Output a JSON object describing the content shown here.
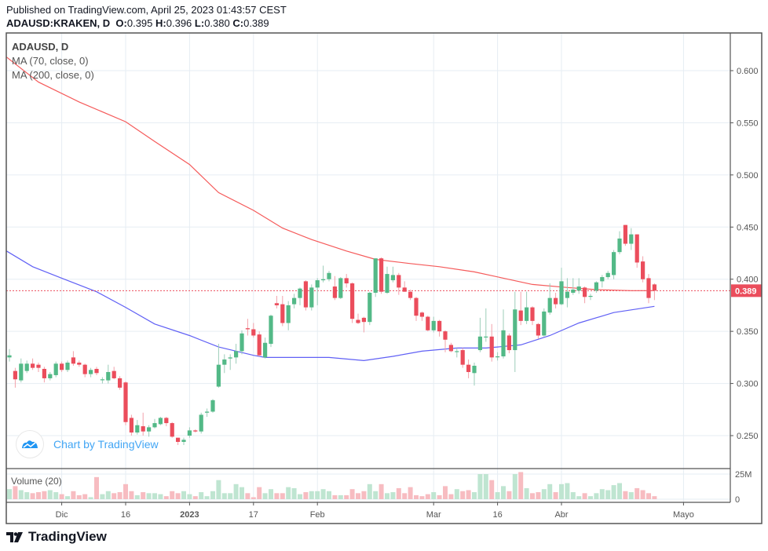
{
  "header": {
    "published": "Published on TradingView.com, April 25, 2023 01:43:57 CEST",
    "symbol": "ADAUSD:KRAKEN, D",
    "o_label": "O:",
    "o": "0.395",
    "h_label": "H:",
    "h": "0.396",
    "l_label": "L:",
    "l": "0.380",
    "c_label": "C:",
    "c": "0.389"
  },
  "legend": {
    "title": "ADAUSD, D",
    "ma70": "MA (70, close, 0)",
    "ma200": "MA (200, close, 0)",
    "volume": "Volume (20)"
  },
  "watermark": "Chart by TradingView",
  "footer_logo": "TradingView",
  "colors": {
    "up": "#53b987",
    "down": "#eb4d5c",
    "vol_up": "#bfe5d1",
    "vol_down": "#f7bcc1",
    "ma70": "#f55a5a",
    "ma200": "#6060f5",
    "last_price": "#eb4d5c",
    "grid": "#e6edf3"
  },
  "chart_data": {
    "type": "candlestick",
    "symbol": "ADAUSD",
    "interval": "D",
    "ylim": [
      0.22,
      0.635
    ],
    "y_ticks": [
      "0.600",
      "0.550",
      "0.500",
      "0.450",
      "0.400",
      "0.350",
      "0.300",
      "0.250"
    ],
    "last_price": "0.389",
    "x_ticks": [
      {
        "label": "Dic",
        "index": 9
      },
      {
        "label": "16",
        "index": 20
      },
      {
        "label": "2023",
        "index": 31,
        "bold": true
      },
      {
        "label": "17",
        "index": 42
      },
      {
        "label": "Feb",
        "index": 53
      },
      {
        "label": "Mar",
        "index": 73
      },
      {
        "label": "16",
        "index": 84
      },
      {
        "label": "Abr",
        "index": 95
      },
      {
        "label": "Mayo",
        "index": 116
      }
    ],
    "x_range": [
      -0.5,
      124
    ],
    "ohlc": [
      [
        0.325,
        0.333,
        0.321,
        0.327
      ],
      [
        0.312,
        0.315,
        0.296,
        0.304
      ],
      [
        0.303,
        0.324,
        0.301,
        0.319
      ],
      [
        0.312,
        0.322,
        0.31,
        0.319
      ],
      [
        0.319,
        0.324,
        0.313,
        0.315
      ],
      [
        0.318,
        0.32,
        0.311,
        0.315
      ],
      [
        0.314,
        0.316,
        0.301,
        0.305
      ],
      [
        0.305,
        0.311,
        0.303,
        0.309
      ],
      [
        0.308,
        0.321,
        0.306,
        0.319
      ],
      [
        0.319,
        0.321,
        0.311,
        0.313
      ],
      [
        0.313,
        0.322,
        0.311,
        0.32
      ],
      [
        0.325,
        0.331,
        0.317,
        0.319
      ],
      [
        0.32,
        0.322,
        0.316,
        0.318
      ],
      [
        0.318,
        0.319,
        0.306,
        0.309
      ],
      [
        0.309,
        0.315,
        0.306,
        0.313
      ],
      [
        0.314,
        0.316,
        0.308,
        0.31
      ],
      [
        0.304,
        0.306,
        0.3,
        0.304
      ],
      [
        0.303,
        0.318,
        0.3,
        0.311
      ],
      [
        0.312,
        0.316,
        0.304,
        0.305
      ],
      [
        0.305,
        0.307,
        0.294,
        0.296
      ],
      [
        0.301,
        0.302,
        0.26,
        0.263
      ],
      [
        0.267,
        0.27,
        0.25,
        0.253
      ],
      [
        0.253,
        0.265,
        0.251,
        0.26
      ],
      [
        0.259,
        0.272,
        0.25,
        0.254
      ],
      [
        0.254,
        0.26,
        0.249,
        0.258
      ],
      [
        0.258,
        0.266,
        0.257,
        0.262
      ],
      [
        0.261,
        0.268,
        0.26,
        0.267
      ],
      [
        0.267,
        0.268,
        0.259,
        0.262
      ],
      [
        0.262,
        0.263,
        0.248,
        0.249
      ],
      [
        0.248,
        0.248,
        0.241,
        0.244
      ],
      [
        0.244,
        0.248,
        0.241,
        0.246
      ],
      [
        0.25,
        0.258,
        0.248,
        0.255
      ],
      [
        0.255,
        0.256,
        0.253,
        0.254
      ],
      [
        0.254,
        0.272,
        0.252,
        0.27
      ],
      [
        0.272,
        0.276,
        0.268,
        0.273
      ],
      [
        0.273,
        0.285,
        0.272,
        0.284
      ],
      [
        0.297,
        0.338,
        0.296,
        0.318
      ],
      [
        0.318,
        0.328,
        0.31,
        0.323
      ],
      [
        0.324,
        0.328,
        0.313,
        0.325
      ],
      [
        0.325,
        0.338,
        0.319,
        0.331
      ],
      [
        0.331,
        0.351,
        0.328,
        0.348
      ],
      [
        0.353,
        0.362,
        0.346,
        0.352
      ],
      [
        0.352,
        0.358,
        0.344,
        0.346
      ],
      [
        0.347,
        0.35,
        0.326,
        0.327
      ],
      [
        0.325,
        0.344,
        0.324,
        0.339
      ],
      [
        0.338,
        0.366,
        0.335,
        0.365
      ],
      [
        0.377,
        0.384,
        0.372,
        0.375
      ],
      [
        0.376,
        0.384,
        0.355,
        0.358
      ],
      [
        0.358,
        0.379,
        0.351,
        0.375
      ],
      [
        0.376,
        0.386,
        0.372,
        0.382
      ],
      [
        0.382,
        0.392,
        0.375,
        0.391
      ],
      [
        0.398,
        0.399,
        0.37,
        0.373
      ],
      [
        0.373,
        0.395,
        0.37,
        0.392
      ],
      [
        0.392,
        0.401,
        0.375,
        0.399
      ],
      [
        0.399,
        0.413,
        0.397,
        0.4
      ],
      [
        0.4,
        0.408,
        0.398,
        0.406
      ],
      [
        0.393,
        0.403,
        0.38,
        0.382
      ],
      [
        0.382,
        0.402,
        0.381,
        0.401
      ],
      [
        0.401,
        0.405,
        0.392,
        0.396
      ],
      [
        0.396,
        0.397,
        0.358,
        0.362
      ],
      [
        0.361,
        0.367,
        0.357,
        0.358
      ],
      [
        0.363,
        0.364,
        0.349,
        0.359
      ],
      [
        0.359,
        0.388,
        0.356,
        0.387
      ],
      [
        0.387,
        0.42,
        0.383,
        0.42
      ],
      [
        0.42,
        0.421,
        0.386,
        0.388
      ],
      [
        0.387,
        0.412,
        0.386,
        0.405
      ],
      [
        0.399,
        0.412,
        0.397,
        0.404
      ],
      [
        0.404,
        0.406,
        0.385,
        0.392
      ],
      [
        0.392,
        0.398,
        0.388,
        0.388
      ],
      [
        0.388,
        0.39,
        0.38,
        0.382
      ],
      [
        0.382,
        0.383,
        0.36,
        0.365
      ],
      [
        0.368,
        0.369,
        0.36,
        0.364
      ],
      [
        0.364,
        0.365,
        0.35,
        0.351
      ],
      [
        0.351,
        0.364,
        0.349,
        0.36
      ],
      [
        0.36,
        0.361,
        0.345,
        0.35
      ],
      [
        0.35,
        0.351,
        0.33,
        0.342
      ],
      [
        0.337,
        0.339,
        0.33,
        0.331
      ],
      [
        0.331,
        0.334,
        0.325,
        0.331
      ],
      [
        0.332,
        0.334,
        0.315,
        0.318
      ],
      [
        0.318,
        0.323,
        0.305,
        0.311
      ],
      [
        0.31,
        0.32,
        0.298,
        0.317
      ],
      [
        0.332,
        0.363,
        0.33,
        0.345
      ],
      [
        0.345,
        0.372,
        0.34,
        0.345
      ],
      [
        0.345,
        0.357,
        0.321,
        0.325
      ],
      [
        0.326,
        0.33,
        0.322,
        0.326
      ],
      [
        0.326,
        0.371,
        0.324,
        0.351
      ],
      [
        0.346,
        0.348,
        0.329,
        0.332
      ],
      [
        0.332,
        0.388,
        0.311,
        0.371
      ],
      [
        0.37,
        0.388,
        0.356,
        0.36
      ],
      [
        0.36,
        0.388,
        0.357,
        0.373
      ],
      [
        0.373,
        0.374,
        0.356,
        0.36
      ],
      [
        0.357,
        0.358,
        0.343,
        0.346
      ],
      [
        0.346,
        0.372,
        0.345,
        0.369
      ],
      [
        0.368,
        0.396,
        0.366,
        0.382
      ],
      [
        0.382,
        0.387,
        0.372,
        0.376
      ],
      [
        0.376,
        0.411,
        0.375,
        0.398
      ],
      [
        0.382,
        0.401,
        0.373,
        0.388
      ],
      [
        0.387,
        0.401,
        0.385,
        0.39
      ],
      [
        0.389,
        0.401,
        0.386,
        0.393
      ],
      [
        0.392,
        0.393,
        0.377,
        0.383
      ],
      [
        0.384,
        0.386,
        0.38,
        0.384
      ],
      [
        0.389,
        0.398,
        0.387,
        0.397
      ],
      [
        0.398,
        0.404,
        0.392,
        0.402
      ],
      [
        0.402,
        0.408,
        0.4,
        0.406
      ],
      [
        0.404,
        0.428,
        0.4,
        0.426
      ],
      [
        0.426,
        0.446,
        0.424,
        0.439
      ],
      [
        0.452,
        0.452,
        0.432,
        0.434
      ],
      [
        0.434,
        0.449,
        0.428,
        0.443
      ],
      [
        0.443,
        0.443,
        0.411,
        0.416
      ],
      [
        0.417,
        0.422,
        0.397,
        0.4
      ],
      [
        0.401,
        0.405,
        0.377,
        0.382
      ],
      [
        0.395,
        0.396,
        0.38,
        0.389
      ]
    ],
    "volume_ticks": [
      "25M",
      "0"
    ],
    "volume_max_tick": 25,
    "volume_millions": [
      10,
      13,
      9,
      7,
      6,
      7,
      8,
      9,
      7,
      5,
      3,
      8,
      4,
      5,
      2,
      22,
      5,
      8,
      6,
      7,
      15,
      8,
      4,
      7,
      6,
      6,
      5,
      3,
      8,
      6,
      8,
      5,
      3,
      7,
      3,
      8,
      19,
      6,
      6,
      15,
      12,
      6,
      2,
      12,
      6,
      10,
      6,
      6,
      12,
      11,
      5,
      7,
      8,
      8,
      10,
      8,
      4,
      4,
      4,
      10,
      6,
      8,
      15,
      8,
      15,
      6,
      7,
      11,
      6,
      12,
      4,
      3,
      5,
      7,
      4,
      13,
      5,
      10,
      8,
      9,
      7,
      25,
      25,
      19,
      7,
      13,
      8,
      25,
      27,
      11,
      6,
      7,
      10,
      15,
      7,
      15,
      16,
      7,
      3,
      6,
      3,
      6,
      10,
      9,
      14,
      16,
      8,
      7,
      11,
      9,
      6,
      3
    ],
    "ma70": [
      [
        -0.5,
        0.613
      ],
      [
        5,
        0.589
      ],
      [
        12,
        0.57
      ],
      [
        20,
        0.551
      ],
      [
        25,
        0.532
      ],
      [
        31,
        0.51
      ],
      [
        36,
        0.483
      ],
      [
        42,
        0.466
      ],
      [
        47,
        0.449
      ],
      [
        52,
        0.438
      ],
      [
        58,
        0.427
      ],
      [
        63,
        0.419
      ],
      [
        69,
        0.415
      ],
      [
        74,
        0.412
      ],
      [
        80,
        0.407
      ],
      [
        85,
        0.401
      ],
      [
        90,
        0.395
      ],
      [
        96,
        0.392
      ],
      [
        101,
        0.39
      ],
      [
        107,
        0.389
      ],
      [
        111,
        0.389
      ]
    ],
    "ma200": [
      [
        -0.5,
        0.427
      ],
      [
        4,
        0.412
      ],
      [
        9,
        0.401
      ],
      [
        15,
        0.388
      ],
      [
        20,
        0.373
      ],
      [
        25,
        0.357
      ],
      [
        31,
        0.346
      ],
      [
        36,
        0.335
      ],
      [
        42,
        0.327
      ],
      [
        44,
        0.325
      ],
      [
        50,
        0.325
      ],
      [
        55,
        0.325
      ],
      [
        61,
        0.322
      ],
      [
        66,
        0.326
      ],
      [
        71,
        0.331
      ],
      [
        77,
        0.334
      ],
      [
        82,
        0.334
      ],
      [
        88,
        0.337
      ],
      [
        93,
        0.346
      ],
      [
        98,
        0.358
      ],
      [
        104,
        0.368
      ],
      [
        111,
        0.374
      ]
    ]
  }
}
